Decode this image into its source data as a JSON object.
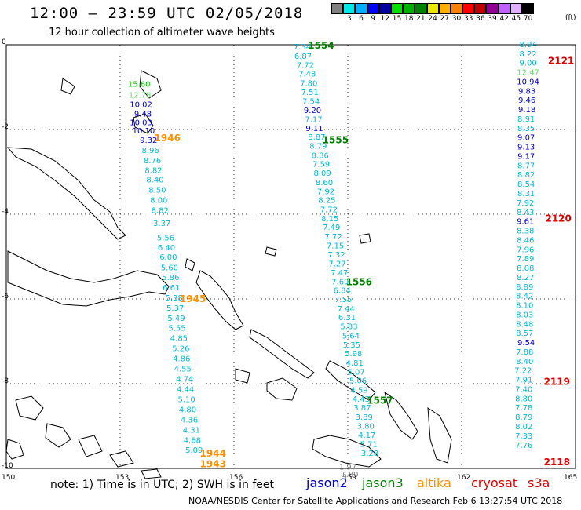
{
  "header": {
    "title": "12:00 – 23:59 UTC 02/05/2018",
    "subtitle": "12 hour collection of altimeter wave heights"
  },
  "legend": {
    "unit": "(ft)",
    "labels": [
      "",
      "3",
      "6",
      "9",
      "12",
      "15",
      "18",
      "21",
      "24",
      "27",
      "30",
      "33",
      "36",
      "39",
      "42",
      "45",
      "70"
    ],
    "colors": [
      "#808080",
      "#00e8e8",
      "#00b0ff",
      "#0000ff",
      "#0000a0",
      "#00e000",
      "#00b000",
      "#008000",
      "#e8e800",
      "#ffb000",
      "#ff8000",
      "#ff0000",
      "#c00000",
      "#900090",
      "#c060ff",
      "#e0b0ff",
      "#000000"
    ]
  },
  "axes": {
    "y_ticks": [
      "0",
      "-2",
      "-4",
      "-6",
      "-8",
      "-10"
    ],
    "x_ticks": [
      "150",
      "153",
      "156",
      "159",
      "162",
      "165"
    ]
  },
  "footer": {
    "note": "note:  1) Time is in UTC; 2) SWH is in feet",
    "satellites": [
      {
        "name": "jason2",
        "color": "#0000c8"
      },
      {
        "name": "jason3",
        "color": "#008000"
      },
      {
        "name": "altika",
        "color": "#ff9000"
      },
      {
        "name": "cryosat",
        "color": "#e00000"
      },
      {
        "name": "s3a",
        "color": "#e00000"
      }
    ],
    "credit": "NOAA/NESDIS Center for Satellite Applications and Research   Feb  6 13:27:54 UTC 2018"
  },
  "map_data": {
    "lon_range": [
      150,
      165
    ],
    "lat_range": [
      -10,
      0
    ],
    "tracks": [
      {
        "id": "track-1943-1946",
        "times": [
          {
            "label": "1946",
            "lat": -2.2,
            "color": "#ff9000"
          },
          {
            "label": "1945",
            "lat": -6.0,
            "color": "#ff9000"
          },
          {
            "label": "1944",
            "lat": -9.65,
            "color": "#ff9000"
          },
          {
            "label": "1943",
            "lat": -9.9,
            "color": "#ff9000"
          }
        ],
        "points": [
          {
            "lon": 153.5,
            "lat": -0.92,
            "v": "15.60",
            "c": "#00c800"
          },
          {
            "lon": 153.52,
            "lat": -1.18,
            "v": "12.78",
            "c": "#60e060"
          },
          {
            "lon": 153.55,
            "lat": -1.4,
            "v": "10.02",
            "c": "#0000c8"
          },
          {
            "lon": 153.6,
            "lat": -1.62,
            "v": "9.48",
            "c": "#0000c8"
          },
          {
            "lon": 153.55,
            "lat": -1.82,
            "v": "10.03",
            "c": "#0000c8"
          },
          {
            "lon": 153.62,
            "lat": -2.02,
            "v": "10.10",
            "c": "#0000c8"
          },
          {
            "lon": 153.75,
            "lat": -2.24,
            "v": "9.32",
            "c": "#0000c8"
          },
          {
            "lon": 153.8,
            "lat": -2.48,
            "v": "8.96",
            "c": "#00b8d8"
          },
          {
            "lon": 153.85,
            "lat": -2.72,
            "v": "8.76",
            "c": "#00b8d8"
          },
          {
            "lon": 153.88,
            "lat": -2.95,
            "v": "8.82",
            "c": "#00b8d8"
          },
          {
            "lon": 153.92,
            "lat": -3.18,
            "v": "8.40",
            "c": "#00b8d8"
          },
          {
            "lon": 153.98,
            "lat": -3.42,
            "v": "8.50",
            "c": "#00b8d8"
          },
          {
            "lon": 154.02,
            "lat": -3.66,
            "v": "8.00",
            "c": "#00b8d8"
          },
          {
            "lon": 154.05,
            "lat": -3.9,
            "v": "8.82",
            "c": "#00b8d8"
          },
          {
            "lon": 154.1,
            "lat": -4.2,
            "v": "3.37",
            "c": "#00b8d8"
          },
          {
            "lon": 154.2,
            "lat": -4.55,
            "v": "5.56",
            "c": "#00b8d8"
          },
          {
            "lon": 154.22,
            "lat": -4.78,
            "v": "6.40",
            "c": "#00b8d8"
          },
          {
            "lon": 154.27,
            "lat": -5.0,
            "v": "6.00",
            "c": "#00b8d8"
          },
          {
            "lon": 154.3,
            "lat": -5.25,
            "v": "5.60",
            "c": "#00b8d8"
          },
          {
            "lon": 154.33,
            "lat": -5.48,
            "v": "5.86",
            "c": "#00b8d8"
          },
          {
            "lon": 154.35,
            "lat": -5.72,
            "v": "6.61",
            "c": "#00b8d8"
          },
          {
            "lon": 154.42,
            "lat": -5.96,
            "v": "5.38",
            "c": "#00b8d8"
          },
          {
            "lon": 154.45,
            "lat": -6.2,
            "v": "5.37",
            "c": "#00b8d8"
          },
          {
            "lon": 154.48,
            "lat": -6.44,
            "v": "5.49",
            "c": "#00b8d8"
          },
          {
            "lon": 154.5,
            "lat": -6.68,
            "v": "5.55",
            "c": "#00b8d8"
          },
          {
            "lon": 154.55,
            "lat": -6.92,
            "v": "4.85",
            "c": "#00b8d8"
          },
          {
            "lon": 154.6,
            "lat": -7.16,
            "v": "5.26",
            "c": "#00b8d8"
          },
          {
            "lon": 154.62,
            "lat": -7.4,
            "v": "4.86",
            "c": "#00b8d8"
          },
          {
            "lon": 154.65,
            "lat": -7.64,
            "v": "4.55",
            "c": "#00b8d8"
          },
          {
            "lon": 154.7,
            "lat": -7.88,
            "v": "4.74",
            "c": "#00b8d8"
          },
          {
            "lon": 154.72,
            "lat": -8.12,
            "v": "4.44",
            "c": "#00b8d8"
          },
          {
            "lon": 154.75,
            "lat": -8.36,
            "v": "5.10",
            "c": "#00b8d8"
          },
          {
            "lon": 154.78,
            "lat": -8.6,
            "v": "4.80",
            "c": "#00b8d8"
          },
          {
            "lon": 154.82,
            "lat": -8.84,
            "v": "4.36",
            "c": "#00b8d8"
          },
          {
            "lon": 154.88,
            "lat": -9.08,
            "v": "4.31",
            "c": "#00b8d8"
          },
          {
            "lon": 154.9,
            "lat": -9.32,
            "v": "4.68",
            "c": "#00b8d8"
          },
          {
            "lon": 154.95,
            "lat": -9.56,
            "v": "5.09",
            "c": "#00b8d8"
          }
        ]
      },
      {
        "id": "track-1554-1557",
        "times": [
          {
            "label": "1554",
            "lat": -0.02,
            "color": "#008000"
          },
          {
            "label": "1555",
            "lat": -2.25,
            "color": "#008000"
          },
          {
            "lon": 0,
            "label": "1556",
            "lat": -5.6,
            "color": "#008000"
          },
          {
            "label": "1557",
            "lat": -8.4,
            "color": "#008000"
          }
        ],
        "points": [
          {
            "lon": 157.8,
            "lat": -0.04,
            "v": "7.34",
            "c": "#00b8d8"
          },
          {
            "lon": 157.82,
            "lat": -0.26,
            "v": "6.87",
            "c": "#00b8d8"
          },
          {
            "lon": 157.88,
            "lat": -0.47,
            "v": "7.72",
            "c": "#00b8d8"
          },
          {
            "lon": 157.93,
            "lat": -0.68,
            "v": "7.48",
            "c": "#00b8d8"
          },
          {
            "lon": 157.97,
            "lat": -0.9,
            "v": "7.80",
            "c": "#00b8d8"
          },
          {
            "lon": 158.0,
            "lat": -1.11,
            "v": "7.51",
            "c": "#00b8d8"
          },
          {
            "lon": 158.03,
            "lat": -1.32,
            "v": "7.54",
            "c": "#00b8d8"
          },
          {
            "lon": 158.07,
            "lat": -1.54,
            "v": "9.20",
            "c": "#0000c8"
          },
          {
            "lon": 158.1,
            "lat": -1.75,
            "v": "7.17",
            "c": "#00b8d8"
          },
          {
            "lon": 158.12,
            "lat": -1.96,
            "v": "9.11",
            "c": "#0000c8"
          },
          {
            "lon": 158.18,
            "lat": -2.17,
            "v": "8.87",
            "c": "#00b8d8"
          },
          {
            "lon": 158.22,
            "lat": -2.38,
            "v": "8.79",
            "c": "#00b8d8"
          },
          {
            "lon": 158.27,
            "lat": -2.6,
            "v": "8.86",
            "c": "#00b8d8"
          },
          {
            "lon": 158.3,
            "lat": -2.81,
            "v": "7.59",
            "c": "#00b8d8"
          },
          {
            "lon": 158.33,
            "lat": -3.02,
            "v": "8.09",
            "c": "#00b8d8"
          },
          {
            "lon": 158.38,
            "lat": -3.24,
            "v": "8.60",
            "c": "#00b8d8"
          },
          {
            "lon": 158.42,
            "lat": -3.45,
            "v": "7.92",
            "c": "#00b8d8"
          },
          {
            "lon": 158.45,
            "lat": -3.66,
            "v": "8.25",
            "c": "#00b8d8"
          },
          {
            "lon": 158.5,
            "lat": -3.88,
            "v": "7.72",
            "c": "#00b8d8"
          },
          {
            "lon": 158.53,
            "lat": -4.09,
            "v": "8.15",
            "c": "#00b8d8"
          },
          {
            "lon": 158.57,
            "lat": -4.3,
            "v": "7.49",
            "c": "#00b8d8"
          },
          {
            "lon": 158.62,
            "lat": -4.52,
            "v": "7.72",
            "c": "#00b8d8"
          },
          {
            "lon": 158.67,
            "lat": -4.73,
            "v": "7.15",
            "c": "#00b8d8"
          },
          {
            "lon": 158.7,
            "lat": -4.94,
            "v": "7.32",
            "c": "#00b8d8"
          },
          {
            "lon": 158.72,
            "lat": -5.16,
            "v": "7.27",
            "c": "#00b8d8"
          },
          {
            "lon": 158.78,
            "lat": -5.37,
            "v": "7.47",
            "c": "#00b8d8"
          },
          {
            "lon": 158.8,
            "lat": -5.58,
            "v": "7.69",
            "c": "#00b8d8"
          },
          {
            "lon": 158.85,
            "lat": -5.79,
            "v": "6.84",
            "c": "#00b8d8"
          },
          {
            "lon": 158.88,
            "lat": -6.0,
            "v": "7.55",
            "c": "#00b8d8"
          },
          {
            "lon": 158.95,
            "lat": -6.22,
            "v": "7.44",
            "c": "#00b8d8"
          },
          {
            "lon": 158.98,
            "lat": -6.43,
            "v": "6.31",
            "c": "#00b8d8"
          },
          {
            "lon": 159.03,
            "lat": -6.64,
            "v": "5.83",
            "c": "#00b8d8"
          },
          {
            "lon": 159.08,
            "lat": -6.86,
            "v": "5.64",
            "c": "#00b8d8"
          },
          {
            "lon": 159.1,
            "lat": -7.07,
            "v": "5.35",
            "c": "#00b8d8"
          },
          {
            "lon": 159.15,
            "lat": -7.28,
            "v": "5.98",
            "c": "#00b8d8"
          },
          {
            "lon": 159.18,
            "lat": -7.5,
            "v": "4.81",
            "c": "#00b8d8"
          },
          {
            "lon": 159.22,
            "lat": -7.71,
            "v": "5.07",
            "c": "#00b8d8"
          },
          {
            "lon": 159.27,
            "lat": -7.92,
            "v": "5.06",
            "c": "#00b8d8"
          },
          {
            "lon": 159.3,
            "lat": -8.14,
            "v": "4.59",
            "c": "#00b8d8"
          },
          {
            "lon": 159.35,
            "lat": -8.35,
            "v": "4.43",
            "c": "#00b8d8"
          },
          {
            "lon": 159.38,
            "lat": -8.56,
            "v": "3.87",
            "c": "#00b8d8"
          },
          {
            "lon": 159.43,
            "lat": -8.78,
            "v": "3.89",
            "c": "#00b8d8"
          },
          {
            "lon": 159.47,
            "lat": -8.99,
            "v": "3.80",
            "c": "#00b8d8"
          },
          {
            "lon": 159.5,
            "lat": -9.2,
            "v": "4.17",
            "c": "#00b8d8"
          },
          {
            "lon": 159.55,
            "lat": -9.42,
            "v": "5.71",
            "c": "#00b8d8"
          },
          {
            "lon": 159.58,
            "lat": -9.63,
            "v": "3.28",
            "c": "#00b8d8"
          },
          {
            "lon": 159.0,
            "lat": -9.95,
            "v": "1.97",
            "c": "#808080"
          },
          {
            "lon": 159.05,
            "lat": -10.13,
            "v": "1.80",
            "c": "#808080"
          }
        ]
      },
      {
        "id": "track-2118-2121",
        "times": [
          {
            "label": "2121",
            "lat": -0.38,
            "color": "#e00000"
          },
          {
            "label": "2120",
            "lat": -4.1,
            "color": "#e00000"
          },
          {
            "label": "2119",
            "lat": -7.95,
            "color": "#e00000"
          },
          {
            "label": "2118",
            "lat": -9.85,
            "color": "#e00000"
          }
        ],
        "points": [
          {
            "lon": 163.75,
            "lat": 0.02,
            "v": "8.04",
            "c": "#00b8d8"
          },
          {
            "lon": 163.75,
            "lat": -0.2,
            "v": "8.22",
            "c": "#00b8d8"
          },
          {
            "lon": 163.75,
            "lat": -0.42,
            "v": "9.00",
            "c": "#00b8d8"
          },
          {
            "lon": 163.75,
            "lat": -0.64,
            "v": "12.47",
            "c": "#60e060"
          },
          {
            "lon": 163.75,
            "lat": -0.86,
            "v": "10.94",
            "c": "#0000c8"
          },
          {
            "lon": 163.72,
            "lat": -1.08,
            "v": "9.83",
            "c": "#0000c8"
          },
          {
            "lon": 163.72,
            "lat": -1.3,
            "v": "9.46",
            "c": "#0000c8"
          },
          {
            "lon": 163.72,
            "lat": -1.52,
            "v": "9.18",
            "c": "#0000c8"
          },
          {
            "lon": 163.7,
            "lat": -1.74,
            "v": "8.91",
            "c": "#00b8d8"
          },
          {
            "lon": 163.7,
            "lat": -1.96,
            "v": "8.35",
            "c": "#00b8d8"
          },
          {
            "lon": 163.7,
            "lat": -2.18,
            "v": "9.07",
            "c": "#0000c8"
          },
          {
            "lon": 163.7,
            "lat": -2.4,
            "v": "9.13",
            "c": "#0000c8"
          },
          {
            "lon": 163.7,
            "lat": -2.62,
            "v": "9.17",
            "c": "#0000c8"
          },
          {
            "lon": 163.7,
            "lat": -2.84,
            "v": "8.77",
            "c": "#00b8d8"
          },
          {
            "lon": 163.7,
            "lat": -3.06,
            "v": "8.82",
            "c": "#00b8d8"
          },
          {
            "lon": 163.7,
            "lat": -3.28,
            "v": "8.54",
            "c": "#00b8d8"
          },
          {
            "lon": 163.7,
            "lat": -3.5,
            "v": "8.31",
            "c": "#00b8d8"
          },
          {
            "lon": 163.68,
            "lat": -3.72,
            "v": "7.92",
            "c": "#00b8d8"
          },
          {
            "lon": 163.68,
            "lat": -3.94,
            "v": "8.43",
            "c": "#00b8d8"
          },
          {
            "lon": 163.68,
            "lat": -4.16,
            "v": "9.61",
            "c": "#0000c8"
          },
          {
            "lon": 163.68,
            "lat": -4.38,
            "v": "8.38",
            "c": "#00b8d8"
          },
          {
            "lon": 163.68,
            "lat": -4.6,
            "v": "8.46",
            "c": "#00b8d8"
          },
          {
            "lon": 163.68,
            "lat": -4.82,
            "v": "7.96",
            "c": "#00b8d8"
          },
          {
            "lon": 163.68,
            "lat": -5.04,
            "v": "7.89",
            "c": "#00b8d8"
          },
          {
            "lon": 163.68,
            "lat": -5.26,
            "v": "8.08",
            "c": "#00b8d8"
          },
          {
            "lon": 163.68,
            "lat": -5.48,
            "v": "8.27",
            "c": "#00b8d8"
          },
          {
            "lon": 163.66,
            "lat": -5.7,
            "v": "8.89",
            "c": "#00b8d8"
          },
          {
            "lon": 163.66,
            "lat": -5.92,
            "v": "8.42",
            "c": "#00b8d8"
          },
          {
            "lon": 163.66,
            "lat": -6.14,
            "v": "8.10",
            "c": "#00b8d8"
          },
          {
            "lon": 163.66,
            "lat": -6.36,
            "v": "8.03",
            "c": "#00b8d8"
          },
          {
            "lon": 163.66,
            "lat": -6.58,
            "v": "8.48",
            "c": "#00b8d8"
          },
          {
            "lon": 163.66,
            "lat": -6.8,
            "v": "8.57",
            "c": "#00b8d8"
          },
          {
            "lon": 163.7,
            "lat": -7.02,
            "v": "9.54",
            "c": "#0000c8"
          },
          {
            "lon": 163.66,
            "lat": -7.24,
            "v": "7.88",
            "c": "#00b8d8"
          },
          {
            "lon": 163.66,
            "lat": -7.46,
            "v": "8.40",
            "c": "#00b8d8"
          },
          {
            "lon": 163.62,
            "lat": -7.68,
            "v": "7.22",
            "c": "#00b8d8"
          },
          {
            "lon": 163.64,
            "lat": -7.9,
            "v": "7.91",
            "c": "#00b8d8"
          },
          {
            "lon": 163.64,
            "lat": -8.12,
            "v": "7.40",
            "c": "#00b8d8"
          },
          {
            "lon": 163.64,
            "lat": -8.34,
            "v": "8.80",
            "c": "#00b8d8"
          },
          {
            "lon": 163.64,
            "lat": -8.56,
            "v": "7.78",
            "c": "#00b8d8"
          },
          {
            "lon": 163.64,
            "lat": -8.78,
            "v": "8.79",
            "c": "#00b8d8"
          },
          {
            "lon": 163.64,
            "lat": -9.0,
            "v": "8.02",
            "c": "#00b8d8"
          },
          {
            "lon": 163.64,
            "lat": -9.22,
            "v": "7.33",
            "c": "#00b8d8"
          },
          {
            "lon": 163.64,
            "lat": -9.44,
            "v": "7.76",
            "c": "#00b8d8"
          }
        ]
      }
    ]
  }
}
